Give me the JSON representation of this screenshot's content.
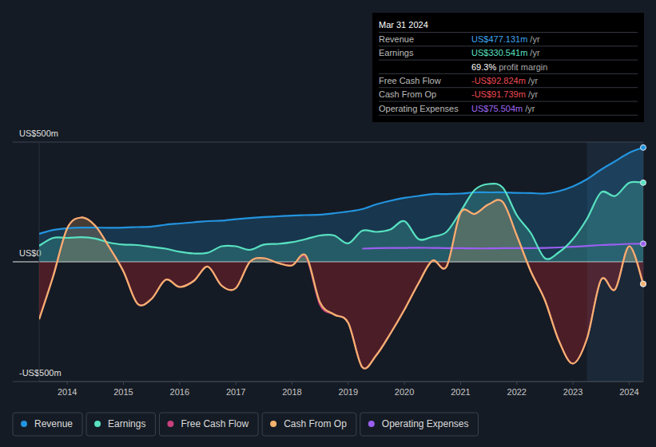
{
  "chart_data": {
    "type": "line",
    "x": [
      2013.5,
      2013.75,
      2014,
      2014.25,
      2014.5,
      2014.75,
      2015,
      2015.25,
      2015.5,
      2015.75,
      2016,
      2016.25,
      2016.5,
      2016.75,
      2017,
      2017.25,
      2017.5,
      2017.75,
      2018,
      2018.25,
      2018.5,
      2018.75,
      2019,
      2019.25,
      2019.5,
      2019.75,
      2020,
      2020.25,
      2020.5,
      2020.75,
      2021,
      2021.25,
      2021.5,
      2021.75,
      2022,
      2022.25,
      2022.5,
      2022.75,
      2023,
      2023.25,
      2023.5,
      2023.75,
      2024,
      2024.25
    ],
    "xlim": [
      2013.5,
      2024.25
    ],
    "xticks": [
      2014,
      2015,
      2016,
      2017,
      2018,
      2019,
      2020,
      2021,
      2022,
      2023,
      2024
    ],
    "ylim": [
      -500,
      500
    ],
    "yticks": [
      {
        "value": 500,
        "label": "US$500m"
      },
      {
        "value": 0,
        "label": "US$0"
      },
      {
        "value": -500,
        "label": "-US$500m"
      }
    ],
    "grid": true,
    "series": [
      {
        "name": "Revenue",
        "color": "#2394df",
        "type": "area",
        "values": [
          117,
          133,
          140,
          143,
          143,
          142,
          143,
          145,
          147,
          155,
          160,
          165,
          170,
          172,
          178,
          183,
          187,
          190,
          193,
          195,
          197,
          203,
          210,
          220,
          240,
          255,
          267,
          275,
          283,
          283,
          285,
          290,
          290,
          290,
          288,
          287,
          285,
          295,
          315,
          345,
          385,
          420,
          455,
          477.131
        ]
      },
      {
        "name": "Earnings",
        "color": "#58e1c1",
        "type": "area",
        "values": [
          67,
          100,
          100,
          103,
          97,
          80,
          72,
          70,
          62,
          55,
          42,
          35,
          38,
          65,
          65,
          50,
          72,
          75,
          82,
          95,
          110,
          110,
          77,
          130,
          125,
          135,
          170,
          95,
          105,
          125,
          210,
          300,
          325,
          310,
          195,
          120,
          15,
          40,
          95,
          180,
          290,
          275,
          330,
          330.541
        ]
      },
      {
        "name": "Free Cash Flow",
        "color": "#c8407e",
        "type": "line",
        "values": [
          -240,
          -60,
          140,
          185,
          150,
          60,
          -40,
          -175,
          -155,
          -75,
          -105,
          -80,
          -20,
          -100,
          -110,
          0,
          15,
          -5,
          -15,
          20,
          -180,
          -220,
          -255,
          -440,
          -390,
          -300,
          -200,
          -90,
          5,
          -20,
          205,
          200,
          240,
          250,
          110,
          -40,
          -160,
          -330,
          -425,
          -320,
          -75,
          -115,
          65,
          -92.824
        ]
      },
      {
        "name": "Cash From Op",
        "color": "#f4b26e",
        "type": "area",
        "values": [
          -240,
          -60,
          140,
          185,
          150,
          60,
          -40,
          -175,
          -155,
          -75,
          -105,
          -80,
          -20,
          -100,
          -110,
          0,
          15,
          -5,
          -15,
          25,
          -170,
          -220,
          -255,
          -440,
          -390,
          -300,
          -200,
          -90,
          5,
          -20,
          205,
          200,
          240,
          250,
          110,
          -40,
          -160,
          -330,
          -425,
          -320,
          -75,
          -115,
          65,
          -91.739
        ]
      },
      {
        "name": "Operating Expenses",
        "color": "#9a5ff0",
        "type": "line",
        "values": [
          null,
          null,
          null,
          null,
          null,
          null,
          null,
          null,
          null,
          null,
          null,
          null,
          null,
          null,
          null,
          null,
          null,
          null,
          null,
          null,
          null,
          null,
          null,
          55,
          57,
          58,
          58,
          59,
          58,
          57,
          57,
          56,
          56,
          57,
          57,
          57,
          58,
          60,
          63,
          66,
          70,
          72,
          75,
          75.504
        ]
      }
    ],
    "tooltip": {
      "title": "Mar 31 2024",
      "rows": [
        {
          "label": "Revenue",
          "value": "US$477.131m",
          "unit": "/yr",
          "color": "#3ea6f2"
        },
        {
          "label": "Earnings",
          "value": "US$330.541m",
          "unit": "/yr",
          "color": "#58e1c1"
        },
        {
          "value": "69.3%",
          "unit": "profit margin",
          "color": "#ffffff"
        },
        {
          "label": "Free Cash Flow",
          "value": "-US$92.824m",
          "unit": "/yr",
          "color": "#ef4b55"
        },
        {
          "label": "Cash From Op",
          "value": "-US$91.739m",
          "unit": "/yr",
          "color": "#ef4b55"
        },
        {
          "label": "Operating Expenses",
          "value": "US$75.504m",
          "unit": "/yr",
          "color": "#a068f5"
        }
      ]
    }
  }
}
